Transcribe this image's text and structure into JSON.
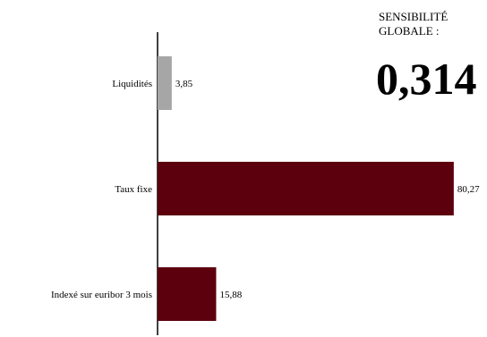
{
  "chart_data": {
    "type": "bar",
    "orientation": "horizontal",
    "categories": [
      "Liquidités",
      "Taux fixe",
      "Indexé sur euribor 3 mois"
    ],
    "values": [
      3.85,
      80.27,
      15.88
    ],
    "value_labels": [
      "3,85",
      "80,27",
      "15,88"
    ],
    "colors": [
      "#a6a6a6",
      "#5c000e",
      "#5c000e"
    ],
    "xlim": [
      0,
      82
    ],
    "grid": false,
    "title": "",
    "xlabel": "",
    "ylabel": ""
  },
  "kpi": {
    "label": "SENSIBILITÉ\nGLOBALE :",
    "value": "0,314"
  }
}
